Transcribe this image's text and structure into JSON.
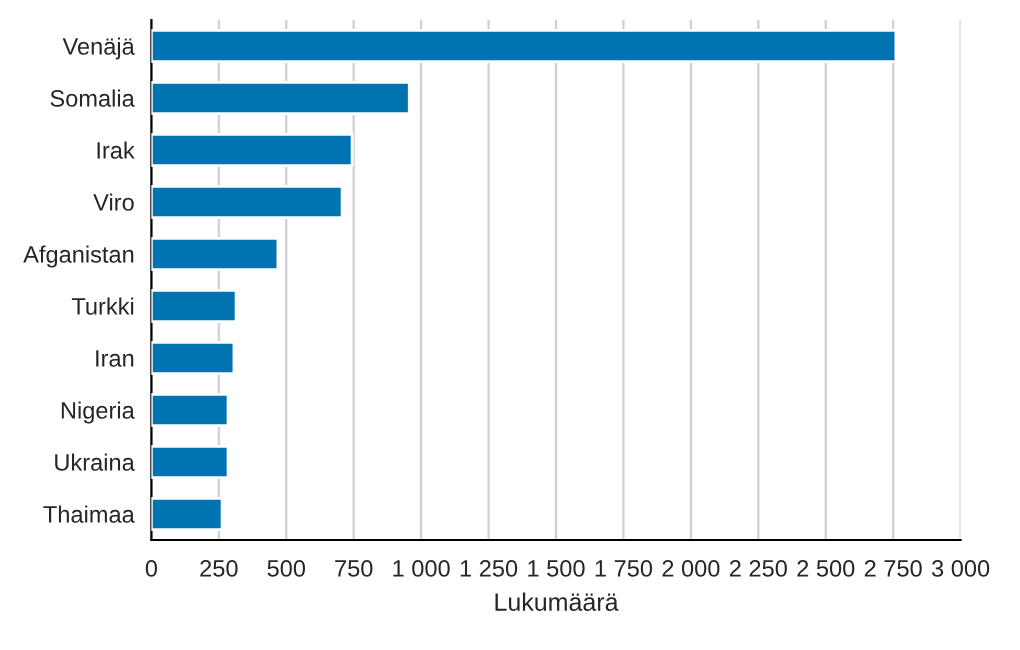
{
  "chart_data": {
    "type": "bar",
    "orientation": "horizontal",
    "xlabel": "Lukumäärä",
    "categories": [
      "Venäjä",
      "Somalia",
      "Irak",
      "Viro",
      "Afganistan",
      "Turkki",
      "Iran",
      "Nigeria",
      "Ukraina",
      "Thaimaa"
    ],
    "values": [
      2760,
      956,
      744,
      707,
      469,
      314,
      306,
      284,
      284,
      262
    ],
    "color": "#0073b0",
    "xlim": [
      0,
      3000
    ],
    "xticks": [
      0,
      250,
      500,
      750,
      {
        "value": 1000,
        "label": "1 000"
      },
      {
        "value": 1250,
        "label": "1 250"
      },
      {
        "value": 1500,
        "label": "1 500"
      },
      {
        "value": 1750,
        "label": "1 750"
      },
      {
        "value": 2000,
        "label": "2 000"
      },
      {
        "value": 2250,
        "label": "2 250"
      },
      {
        "value": 2500,
        "label": "2 500"
      },
      {
        "value": 2750,
        "label": "2 750"
      },
      {
        "value": 3000,
        "label": "3 000"
      }
    ],
    "grid": "x",
    "legend": false
  }
}
